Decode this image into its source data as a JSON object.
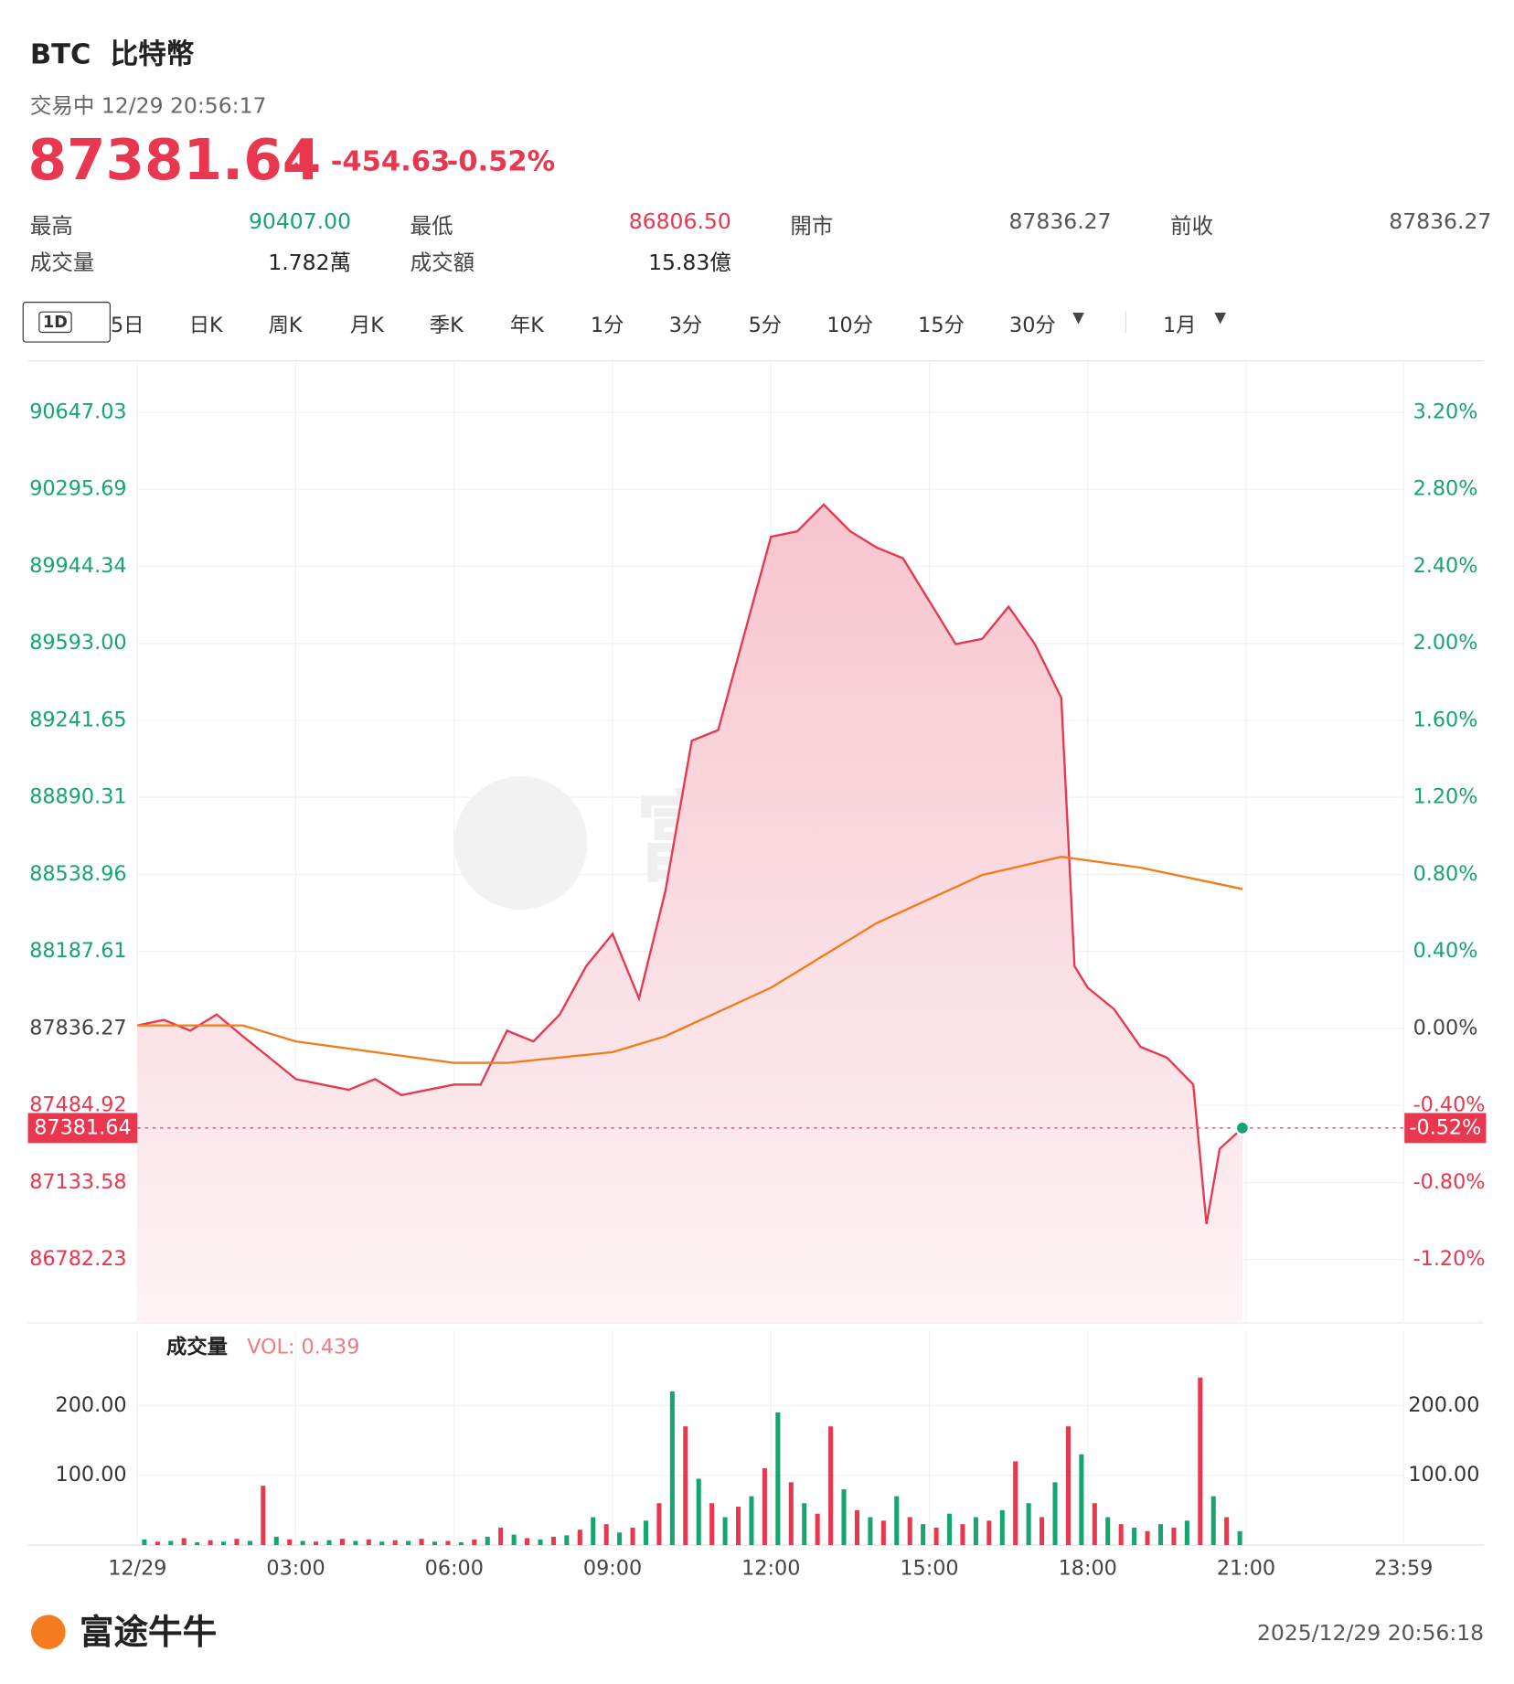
{
  "header": {
    "symbol": "BTC",
    "name": "比特幣",
    "status": "交易中 12/29 20:56:17",
    "price": "87381.64",
    "change": "-454.63",
    "change_pct": "-0.52%",
    "stats": [
      {
        "label": "最高",
        "value": "90407.00"
      },
      {
        "label": "最低",
        "value": "86806.50"
      },
      {
        "label": "開市",
        "value": "87836.27"
      },
      {
        "label": "前收",
        "value": "87836.27"
      },
      {
        "label": "成交量",
        "value": "1.782萬"
      },
      {
        "label": "成交額",
        "value": "15.83億"
      }
    ]
  },
  "tabs": [
    "1D",
    "5日",
    "日K",
    "周K",
    "月K",
    "季K",
    "年K",
    "1分",
    "3分",
    "5分",
    "10分",
    "15分",
    "30分",
    "1月"
  ],
  "chart_data": [
    {
      "type": "line",
      "series": [
        {
          "color": "#e8374f",
          "fill": "#f9d3da",
          "x": [
            0,
            0.5,
            1,
            1.5,
            2,
            2.5,
            3,
            3.5,
            4,
            4.5,
            5,
            5.5,
            6,
            6.5,
            7,
            7.5,
            8,
            8.5,
            9,
            9.5,
            10,
            10.5,
            11,
            11.5,
            12,
            12.5,
            13,
            13.5,
            14,
            14.5,
            15,
            15.5,
            16,
            16.5,
            17,
            17.5,
            17.75,
            18,
            18.5,
            19,
            19.5,
            20,
            20.25,
            20.5,
            20.93
          ],
          "values": [
            87850,
            87875,
            87826,
            87900,
            87800,
            87703,
            87605,
            87580,
            87556,
            87605,
            87532,
            87556,
            87580,
            87580,
            87826,
            87777,
            87900,
            88120,
            88267,
            87973,
            88463,
            89149,
            89197,
            89638,
            90079,
            90104,
            90226,
            90104,
            90030,
            89981,
            89785,
            89589,
            89613,
            89760,
            89589,
            89344,
            88120,
            88022,
            87924,
            87752,
            87703,
            87580,
            86944,
            87287,
            87381.64
          ]
        },
        {
          "color": "#f07d1a",
          "x": [
            0,
            2,
            3,
            6,
            7,
            9,
            10,
            12,
            14,
            16,
            17.5,
            19,
            20.93
          ],
          "values": [
            87850,
            87850,
            87777,
            87679,
            87679,
            87728,
            87801,
            88022,
            88316,
            88536,
            88619,
            88570,
            88472
          ]
        }
      ],
      "ylim": [
        86493,
        90877
      ],
      "yticks": [
        90647.03,
        90295.69,
        89944.34,
        {
          "value": 89593,
          "label": "89593.00"
        },
        89241.65,
        88890.31,
        88538.96,
        88187.61,
        87836.27,
        87484.92,
        87133.58,
        86782.23
      ],
      "y2lim": [
        -1.529,
        3.462
      ],
      "y2ticks": [
        {
          "value": 3.2,
          "label": "3.20%"
        },
        {
          "value": 2.8,
          "label": "2.80%"
        },
        {
          "value": 2.4,
          "label": "2.40%"
        },
        {
          "value": 2,
          "label": "2.00%"
        },
        {
          "value": 1.6,
          "label": "1.60%"
        },
        {
          "value": 1.2,
          "label": "1.20%"
        },
        {
          "value": 0.8,
          "label": "0.80%"
        },
        {
          "value": 0.4,
          "label": "0.40%"
        },
        {
          "value": 0,
          "label": "0.00%"
        },
        {
          "value": -0.4,
          "label": "-0.40%"
        },
        {
          "value": -0.8,
          "label": "-0.80%"
        },
        {
          "value": -1.2,
          "label": "-1.20%"
        }
      ],
      "grid": true
    },
    {
      "type": "bar",
      "title": "成交量",
      "annotation": "VOL: 0.439",
      "x": [
        0,
        0.25,
        0.5,
        0.75,
        1,
        1.25,
        1.5,
        1.75,
        2,
        2.25,
        2.5,
        2.75,
        3,
        3.25,
        3.5,
        3.75,
        4,
        4.25,
        4.5,
        4.75,
        5,
        5.25,
        5.5,
        5.75,
        6,
        6.25,
        6.5,
        6.75,
        7,
        7.25,
        7.5,
        7.75,
        8,
        8.25,
        8.5,
        8.75,
        9,
        9.25,
        9.5,
        9.75,
        10,
        10.25,
        10.5,
        10.75,
        11,
        11.25,
        11.5,
        11.75,
        12,
        12.25,
        12.5,
        12.75,
        13,
        13.25,
        13.5,
        13.75,
        14,
        14.25,
        14.5,
        14.75,
        15,
        15.25,
        15.5,
        15.75,
        16,
        16.25,
        16.5,
        16.75,
        17,
        17.25,
        17.5,
        17.75,
        18,
        18.25,
        18.5,
        18.75,
        19,
        19.25,
        19.5,
        19.75,
        20,
        20.25,
        20.5,
        20.75
      ],
      "values": [
        8,
        5,
        6,
        10,
        4,
        7,
        5,
        9,
        6,
        85,
        12,
        8,
        6,
        5,
        7,
        9,
        6,
        8,
        5,
        7,
        6,
        9,
        5,
        6,
        4,
        8,
        12,
        25,
        15,
        10,
        8,
        12,
        14,
        22,
        40,
        30,
        18,
        25,
        35,
        60,
        220,
        170,
        95,
        60,
        40,
        55,
        70,
        110,
        190,
        90,
        60,
        45,
        170,
        80,
        50,
        40,
        35,
        70,
        40,
        30,
        25,
        45,
        30,
        40,
        35,
        50,
        120,
        60,
        40,
        90,
        170,
        130,
        60,
        40,
        30,
        25,
        20,
        30,
        25,
        35,
        240,
        70,
        40,
        20
      ],
      "colors": [
        "#16a56f",
        "#e8374f",
        "#16a56f",
        "#e8374f",
        "#16a56f",
        "#e8374f",
        "#16a56f",
        "#e8374f",
        "#16a56f",
        "#e8374f",
        "#16a56f",
        "#e8374f",
        "#16a56f",
        "#e8374f",
        "#16a56f",
        "#e8374f",
        "#16a56f",
        "#e8374f",
        "#16a56f",
        "#e8374f",
        "#16a56f",
        "#e8374f",
        "#16a56f",
        "#e8374f",
        "#16a56f",
        "#e8374f",
        "#16a56f",
        "#e8374f",
        "#16a56f",
        "#e8374f",
        "#16a56f",
        "#e8374f",
        "#16a56f",
        "#e8374f",
        "#16a56f",
        "#e8374f",
        "#16a56f",
        "#e8374f",
        "#16a56f",
        "#e8374f",
        "#16a56f",
        "#e8374f",
        "#16a56f",
        "#e8374f",
        "#16a56f",
        "#e8374f",
        "#16a56f",
        "#e8374f",
        "#16a56f",
        "#e8374f",
        "#16a56f",
        "#e8374f",
        "#e8374f",
        "#16a56f",
        "#e8374f",
        "#16a56f",
        "#e8374f",
        "#16a56f",
        "#e8374f",
        "#16a56f",
        "#e8374f",
        "#16a56f",
        "#e8374f",
        "#16a56f",
        "#e8374f",
        "#16a56f",
        "#e8374f",
        "#16a56f",
        "#e8374f",
        "#16a56f",
        "#e8374f",
        "#16a56f",
        "#e8374f",
        "#16a56f",
        "#e8374f",
        "#16a56f",
        "#e8374f",
        "#16a56f",
        "#e8374f",
        "#16a56f",
        "#e8374f",
        "#16a56f",
        "#e8374f",
        "#16a56f"
      ],
      "ylim": [
        0,
        306
      ],
      "yticks": [
        {
          "value": 100,
          "label": "100.00"
        },
        {
          "value": 200,
          "label": "200.00"
        }
      ],
      "xlim": [
        0,
        24
      ],
      "xticks": [
        {
          "value": 0,
          "label": "12/29"
        },
        {
          "value": 3,
          "label": "03:00"
        },
        {
          "value": 6,
          "label": "06:00"
        },
        {
          "value": 9,
          "label": "09:00"
        },
        {
          "value": 12,
          "label": "12:00"
        },
        {
          "value": 15,
          "label": "15:00"
        },
        {
          "value": 18,
          "label": "18:00"
        },
        {
          "value": 21,
          "label": "21:00"
        },
        {
          "value": 23.983,
          "label": "23:59"
        }
      ],
      "grid": true
    }
  ],
  "footer": {
    "brand": "富途牛牛",
    "timestamp": "2025/12/29 20:56:18"
  }
}
